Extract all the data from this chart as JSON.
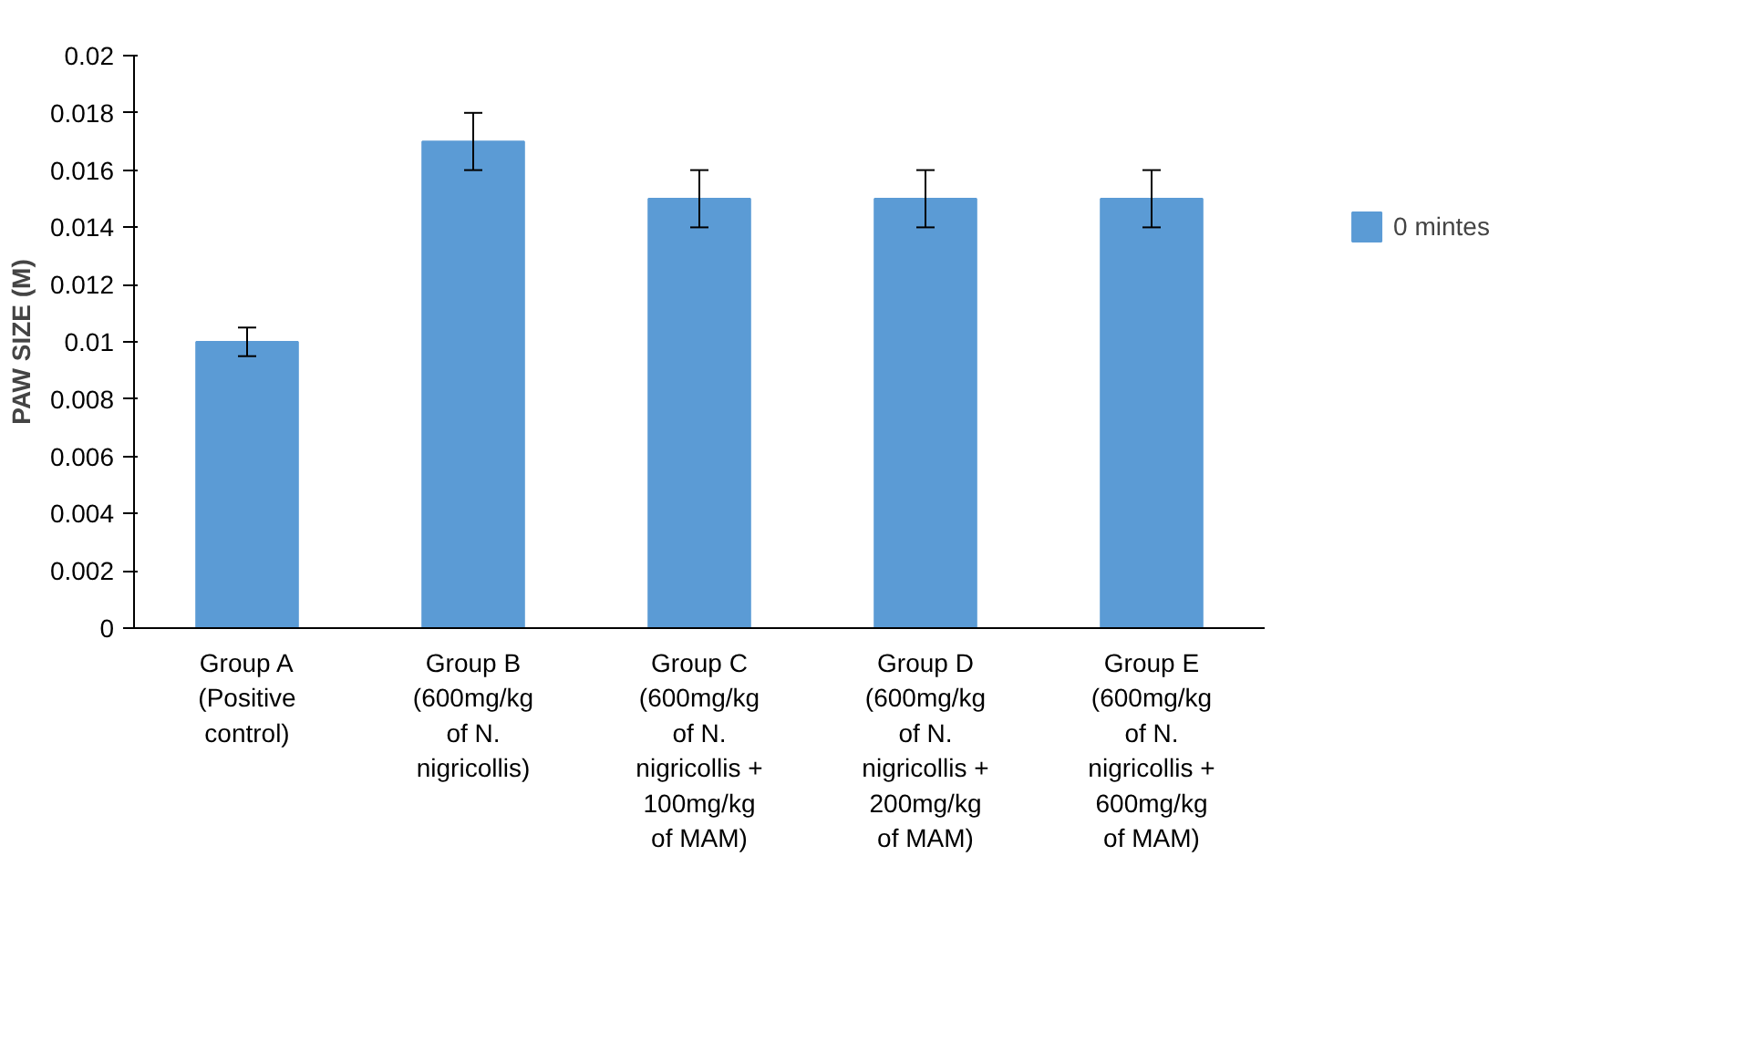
{
  "chart_data": {
    "type": "bar",
    "ylabel": "PAW SIZE (M)",
    "categories": [
      "Group A\n(Positive\ncontrol)",
      "Group B\n(600mg/kg\nof N.\nnigricollis)",
      "Group C\n(600mg/kg\nof N.\nnigricollis +\n100mg/kg\nof MAM)",
      "Group D\n(600mg/kg\nof N.\nnigricollis +\n200mg/kg\nof MAM)",
      "Group E\n(600mg/kg\nof N.\nnigricollis +\n600mg/kg\nof MAM)"
    ],
    "series": [
      {
        "name": "0 mintes",
        "color": "#5b9bd5",
        "values": [
          0.01,
          0.017,
          0.015,
          0.015,
          0.015
        ],
        "errors": [
          0.0005,
          0.001,
          0.001,
          0.001,
          0.001
        ]
      }
    ],
    "ylim": [
      0,
      0.02
    ],
    "yticks": [
      0,
      0.002,
      0.004,
      0.006,
      0.008,
      0.01,
      0.012,
      0.014,
      0.016,
      0.018,
      0.02
    ],
    "grid": false,
    "legend": "right"
  }
}
